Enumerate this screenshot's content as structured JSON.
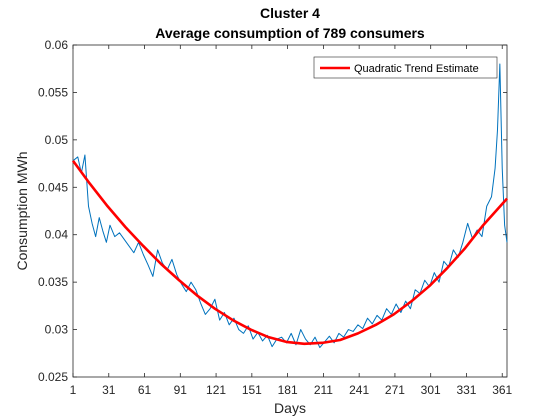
{
  "chart_data": {
    "type": "line",
    "title": "Cluster 4",
    "subtitle": "Average consumption of 789 consumers",
    "xlabel": "Days",
    "ylabel": "Consumption MWh",
    "xlim": [
      1,
      365
    ],
    "ylim": [
      0.025,
      0.06
    ],
    "xticks": [
      1,
      31,
      61,
      91,
      121,
      151,
      181,
      211,
      241,
      271,
      301,
      331,
      361
    ],
    "yticks": [
      0.025,
      0.03,
      0.035,
      0.04,
      0.045,
      0.05,
      0.055,
      0.06
    ],
    "ytick_labels": [
      "0.025",
      "0.03",
      "0.035",
      "0.04",
      "0.045",
      "0.05",
      "0.055",
      "0.06"
    ],
    "grid": false,
    "legend": {
      "placement": "top-right",
      "entries": [
        "Quadratic Trend Estimate"
      ]
    },
    "series": [
      {
        "style": "blue-thin",
        "color": "#0072BD",
        "x": [
          1,
          5,
          8,
          11,
          14,
          17,
          20,
          23,
          26,
          29,
          32,
          36,
          40,
          44,
          48,
          52,
          56,
          60,
          64,
          68,
          72,
          76,
          80,
          84,
          88,
          92,
          96,
          100,
          104,
          108,
          112,
          116,
          120,
          124,
          128,
          132,
          136,
          140,
          144,
          148,
          152,
          156,
          160,
          164,
          168,
          172,
          176,
          180,
          184,
          188,
          192,
          196,
          200,
          204,
          208,
          212,
          216,
          220,
          224,
          228,
          232,
          236,
          240,
          244,
          248,
          252,
          256,
          260,
          264,
          268,
          272,
          276,
          280,
          284,
          288,
          292,
          296,
          300,
          304,
          308,
          312,
          316,
          320,
          324,
          328,
          332,
          336,
          340,
          344,
          348,
          352,
          355,
          357,
          359,
          361,
          363,
          365
        ],
        "values": [
          0.0478,
          0.0482,
          0.0465,
          0.0484,
          0.043,
          0.0412,
          0.0398,
          0.0418,
          0.0404,
          0.0392,
          0.041,
          0.0398,
          0.0402,
          0.0395,
          0.0388,
          0.0381,
          0.0392,
          0.0379,
          0.0368,
          0.0356,
          0.0384,
          0.037,
          0.0363,
          0.0374,
          0.0358,
          0.0348,
          0.034,
          0.035,
          0.0342,
          0.0328,
          0.0316,
          0.0322,
          0.0332,
          0.031,
          0.0318,
          0.0305,
          0.0312,
          0.03,
          0.0296,
          0.0304,
          0.029,
          0.0297,
          0.0288,
          0.0294,
          0.0282,
          0.029,
          0.0292,
          0.0286,
          0.0296,
          0.0284,
          0.03,
          0.029,
          0.0284,
          0.0292,
          0.0281,
          0.0287,
          0.0293,
          0.0286,
          0.0296,
          0.0292,
          0.03,
          0.0298,
          0.0305,
          0.0301,
          0.0312,
          0.0306,
          0.0315,
          0.031,
          0.0322,
          0.0316,
          0.0327,
          0.0318,
          0.033,
          0.0322,
          0.0342,
          0.0338,
          0.0352,
          0.0345,
          0.036,
          0.035,
          0.0372,
          0.0366,
          0.0384,
          0.0376,
          0.0392,
          0.0412,
          0.0396,
          0.0405,
          0.0398,
          0.043,
          0.044,
          0.047,
          0.051,
          0.058,
          0.047,
          0.041,
          0.0392
        ]
      },
      {
        "name": "Quadratic Trend Estimate",
        "style": "red-thick",
        "color": "#FF0000",
        "x": [
          1,
          15,
          30,
          45,
          60,
          75,
          90,
          105,
          120,
          135,
          150,
          165,
          180,
          195,
          210,
          225,
          240,
          255,
          270,
          285,
          300,
          315,
          330,
          345,
          365
        ],
        "values": [
          0.0478,
          0.0454,
          0.043,
          0.0408,
          0.0388,
          0.0369,
          0.0352,
          0.0336,
          0.0322,
          0.031,
          0.03,
          0.0292,
          0.0287,
          0.0285,
          0.0286,
          0.0289,
          0.0296,
          0.0305,
          0.0316,
          0.033,
          0.0346,
          0.0365,
          0.0386,
          0.041,
          0.0438
        ]
      }
    ]
  },
  "colors": {
    "axis": "#262626",
    "data_line": "#0072BD",
    "trend_line": "#FF0000",
    "background": "#FFFFFF"
  }
}
